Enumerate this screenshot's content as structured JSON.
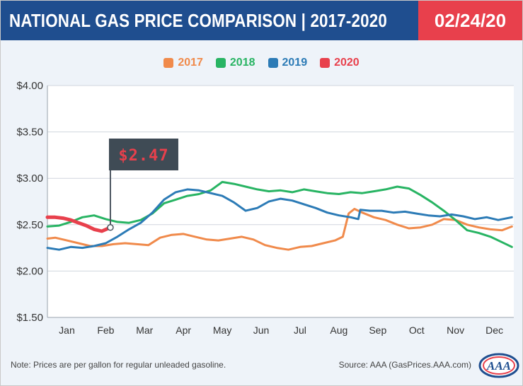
{
  "header": {
    "title": "NATIONAL GAS PRICE COMPARISON | 2017-2020",
    "date": "02/24/20"
  },
  "footer": {
    "note": "Note: Prices are per gallon for regular unleaded gasoline.",
    "source": "Source: AAA (GasPrices.AAA.com)",
    "logo_text": "AAA"
  },
  "colors": {
    "header_bg": "#1f4e8f",
    "date_bg": "#e8404c",
    "2017": "#f08a4b",
    "2018": "#28b463",
    "2019": "#2c7bb6",
    "2020": "#e8404c"
  },
  "chart_data": {
    "type": "line",
    "title": "",
    "xlabel": "",
    "ylabel": "",
    "categories": [
      "Jan",
      "Feb",
      "Mar",
      "Apr",
      "May",
      "Jun",
      "Jul",
      "Aug",
      "Sep",
      "Oct",
      "Nov",
      "Dec"
    ],
    "y_ticks": [
      "$4.00",
      "$3.50",
      "$3.00",
      "$2.50",
      "$2.00",
      "$1.50"
    ],
    "ylim": [
      1.5,
      4.0
    ],
    "xlim": [
      1,
      13
    ],
    "grid": "horizontal",
    "legend": "top-center",
    "annotation": {
      "text": "$2.47",
      "x": 2.62,
      "y": 2.47
    },
    "series": [
      {
        "name": "2017",
        "color": "#f08a4b",
        "x": [
          1.0,
          1.2,
          1.5,
          1.8,
          2.1,
          2.4,
          2.7,
          3.0,
          3.3,
          3.6,
          3.9,
          4.2,
          4.5,
          4.8,
          5.1,
          5.4,
          5.7,
          6.0,
          6.3,
          6.6,
          6.9,
          7.2,
          7.5,
          7.8,
          8.1,
          8.4,
          8.6,
          8.75,
          8.9,
          9.1,
          9.4,
          9.7,
          10.0,
          10.3,
          10.6,
          10.9,
          11.2,
          11.5,
          11.8,
          12.1,
          12.4,
          12.7,
          12.95
        ],
        "values": [
          2.35,
          2.36,
          2.33,
          2.3,
          2.27,
          2.27,
          2.29,
          2.3,
          2.29,
          2.28,
          2.36,
          2.39,
          2.4,
          2.37,
          2.34,
          2.33,
          2.35,
          2.37,
          2.34,
          2.28,
          2.25,
          2.23,
          2.26,
          2.27,
          2.3,
          2.33,
          2.37,
          2.62,
          2.67,
          2.63,
          2.58,
          2.55,
          2.5,
          2.46,
          2.47,
          2.5,
          2.56,
          2.55,
          2.5,
          2.47,
          2.45,
          2.44,
          2.48
        ]
      },
      {
        "name": "2018",
        "color": "#28b463",
        "x": [
          1.0,
          1.3,
          1.6,
          1.9,
          2.2,
          2.5,
          2.8,
          3.1,
          3.4,
          3.7,
          4.0,
          4.3,
          4.6,
          4.9,
          5.2,
          5.5,
          5.8,
          6.1,
          6.4,
          6.7,
          7.0,
          7.3,
          7.6,
          7.9,
          8.2,
          8.5,
          8.8,
          9.1,
          9.4,
          9.7,
          10.0,
          10.3,
          10.6,
          10.9,
          11.2,
          11.5,
          11.8,
          12.1,
          12.4,
          12.7,
          12.95
        ],
        "values": [
          2.48,
          2.49,
          2.53,
          2.58,
          2.6,
          2.56,
          2.53,
          2.52,
          2.55,
          2.62,
          2.73,
          2.77,
          2.81,
          2.83,
          2.87,
          2.96,
          2.94,
          2.91,
          2.88,
          2.86,
          2.87,
          2.85,
          2.88,
          2.86,
          2.84,
          2.83,
          2.85,
          2.84,
          2.86,
          2.88,
          2.91,
          2.89,
          2.82,
          2.74,
          2.65,
          2.55,
          2.44,
          2.41,
          2.37,
          2.31,
          2.26
        ]
      },
      {
        "name": "2019",
        "color": "#2c7bb6",
        "x": [
          1.0,
          1.3,
          1.6,
          1.9,
          2.2,
          2.5,
          2.8,
          3.1,
          3.4,
          3.7,
          4.0,
          4.3,
          4.6,
          4.9,
          5.2,
          5.5,
          5.8,
          6.1,
          6.4,
          6.7,
          7.0,
          7.3,
          7.6,
          7.9,
          8.2,
          8.5,
          8.8,
          9.0,
          9.05,
          9.3,
          9.6,
          9.9,
          10.2,
          10.5,
          10.8,
          11.1,
          11.4,
          11.7,
          12.0,
          12.3,
          12.6,
          12.95
        ],
        "values": [
          2.25,
          2.23,
          2.26,
          2.25,
          2.27,
          2.3,
          2.37,
          2.45,
          2.52,
          2.63,
          2.77,
          2.85,
          2.88,
          2.87,
          2.84,
          2.81,
          2.74,
          2.65,
          2.68,
          2.75,
          2.78,
          2.76,
          2.72,
          2.68,
          2.63,
          2.6,
          2.58,
          2.56,
          2.66,
          2.65,
          2.65,
          2.63,
          2.64,
          2.62,
          2.6,
          2.59,
          2.61,
          2.59,
          2.56,
          2.58,
          2.55,
          2.58
        ]
      },
      {
        "name": "2020",
        "color": "#e8404c",
        "x": [
          1.0,
          1.2,
          1.4,
          1.6,
          1.8,
          2.0,
          2.2,
          2.4,
          2.62
        ],
        "values": [
          2.58,
          2.58,
          2.57,
          2.55,
          2.52,
          2.49,
          2.45,
          2.43,
          2.47
        ]
      }
    ]
  }
}
